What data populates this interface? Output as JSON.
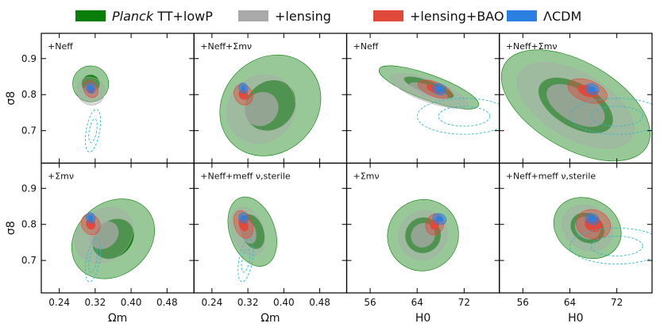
{
  "chart_data": {
    "type": "contour",
    "colors": {
      "planck": "#0a7d0a",
      "lensing": "#a9a9a9",
      "lensing_bao": "#e0483a",
      "lcdm": "#2a7fe0",
      "dashed": "#36b8c8"
    },
    "legend": [
      {
        "key": "planck",
        "label": "Planck TT+lowP",
        "italic": "Planck",
        "rest": " TT+lowP"
      },
      {
        "key": "lensing",
        "label": "+lensing"
      },
      {
        "key": "lensing_bao",
        "label": "+lensing+BAO"
      },
      {
        "key": "lcdm",
        "label": "ΛCDM"
      }
    ],
    "ylabel": "σ8",
    "yticks": [
      "0.9",
      "0.8",
      "0.7"
    ],
    "ylim": [
      0.61,
      0.97
    ],
    "columns": [
      {
        "xlabel": "Ωm",
        "xlim": [
          0.2,
          0.54
        ],
        "xticks": [
          "0.24",
          "0.32",
          "0.40",
          "0.48"
        ]
      },
      {
        "xlabel": "Ωm",
        "xlim": [
          0.2,
          0.54
        ],
        "xticks": [
          "0.24",
          "0.32",
          "0.40",
          "0.48"
        ]
      },
      {
        "xlabel": "H0",
        "xlim": [
          52,
          78
        ],
        "xticks": [
          "56",
          "64",
          "72"
        ]
      },
      {
        "xlabel": "H0",
        "xlim": [
          52,
          78
        ],
        "xticks": [
          "56",
          "64",
          "72"
        ]
      }
    ],
    "panels": [
      {
        "label": "+Neff",
        "x": "Omega_m",
        "y": "sigma_8"
      },
      {
        "label": "+Neff+Σmν",
        "x": "Omega_m",
        "y": "sigma_8"
      },
      {
        "label": "+Neff",
        "x": "H0",
        "y": "sigma_8"
      },
      {
        "label": "+Neff+Σmν",
        "x": "H0",
        "y": "sigma_8"
      },
      {
        "label": "+Σmν",
        "x": "Omega_m",
        "y": "sigma_8"
      },
      {
        "label": "+Neff+meff ν,sterile",
        "x": "Omega_m",
        "y": "sigma_8"
      },
      {
        "label": "+Σmν",
        "x": "H0",
        "y": "sigma_8"
      },
      {
        "label": "+Neff+meff ν,sterile",
        "x": "H0",
        "y": "sigma_8"
      }
    ],
    "contours": [
      [
        {
          "key": "planck",
          "level": 2,
          "cx": 0.31,
          "cy": 0.83,
          "sx": 0.04,
          "sy": 0.05,
          "rot": -40
        },
        {
          "key": "lensing",
          "level": 2,
          "cx": 0.31,
          "cy": 0.81,
          "sx": 0.03,
          "sy": 0.04,
          "rot": -40
        },
        {
          "key": "lensing_bao",
          "level": 2,
          "cx": 0.31,
          "cy": 0.815,
          "sx": 0.015,
          "sy": 0.025,
          "rot": -30
        },
        {
          "key": "lcdm",
          "level": 2,
          "cx": 0.31,
          "cy": 0.818,
          "sx": 0.01,
          "sy": 0.015,
          "rot": -20
        },
        {
          "key": "dashed",
          "level": 2,
          "cx": 0.315,
          "cy": 0.7,
          "sx": 0.015,
          "sy": 0.06,
          "rot": 10
        }
      ],
      [
        {
          "key": "planck",
          "level": 2,
          "cx": 0.37,
          "cy": 0.77,
          "sx": 0.12,
          "sy": 0.13,
          "rot": -45
        },
        {
          "key": "lensing",
          "level": 2,
          "cx": 0.35,
          "cy": 0.76,
          "sx": 0.08,
          "sy": 0.09,
          "rot": -45
        },
        {
          "key": "lensing_bao",
          "level": 2,
          "cx": 0.31,
          "cy": 0.8,
          "sx": 0.02,
          "sy": 0.03,
          "rot": -30
        },
        {
          "key": "lcdm",
          "level": 2,
          "cx": 0.31,
          "cy": 0.818,
          "sx": 0.01,
          "sy": 0.015,
          "rot": -20
        }
      ],
      [
        {
          "key": "planck",
          "level": 2,
          "cx": 66,
          "cy": 0.82,
          "sx": 9,
          "sy": 0.035,
          "rot": 20
        },
        {
          "key": "lensing",
          "level": 2,
          "cx": 66,
          "cy": 0.81,
          "sx": 7,
          "sy": 0.03,
          "rot": 20
        },
        {
          "key": "lensing_bao",
          "level": 2,
          "cx": 67,
          "cy": 0.815,
          "sx": 3,
          "sy": 0.02,
          "rot": 20
        },
        {
          "key": "lcdm",
          "level": 2,
          "cx": 67.8,
          "cy": 0.815,
          "sx": 1.2,
          "sy": 0.015,
          "rot": 20
        },
        {
          "key": "dashed",
          "level": 2,
          "cx": 72,
          "cy": 0.74,
          "sx": 8,
          "sy": 0.05,
          "rot": 0
        }
      ],
      [
        {
          "key": "planck",
          "level": 2,
          "cx": 65,
          "cy": 0.77,
          "sx": 14,
          "sy": 0.12,
          "rot": 30
        },
        {
          "key": "lensing",
          "level": 2,
          "cx": 65,
          "cy": 0.77,
          "sx": 11,
          "sy": 0.09,
          "rot": 30
        },
        {
          "key": "lensing_bao",
          "level": 2,
          "cx": 67,
          "cy": 0.81,
          "sx": 3.5,
          "sy": 0.03,
          "rot": 20
        },
        {
          "key": "lcdm",
          "level": 2,
          "cx": 67.8,
          "cy": 0.815,
          "sx": 1.2,
          "sy": 0.015,
          "rot": 20
        },
        {
          "key": "dashed",
          "level": 2,
          "cx": 72,
          "cy": 0.74,
          "sx": 8,
          "sy": 0.05,
          "rot": 0
        }
      ],
      [
        {
          "key": "planck",
          "level": 2,
          "cx": 0.36,
          "cy": 0.76,
          "sx": 0.1,
          "sy": 0.1,
          "rot": -40
        },
        {
          "key": "lensing",
          "level": 2,
          "cx": 0.34,
          "cy": 0.77,
          "sx": 0.07,
          "sy": 0.07,
          "rot": -40
        },
        {
          "key": "lensing_bao",
          "level": 2,
          "cx": 0.31,
          "cy": 0.8,
          "sx": 0.02,
          "sy": 0.03,
          "rot": -30
        },
        {
          "key": "lcdm",
          "level": 2,
          "cx": 0.31,
          "cy": 0.818,
          "sx": 0.01,
          "sy": 0.015,
          "rot": -20
        },
        {
          "key": "dashed",
          "level": 2,
          "cx": 0.315,
          "cy": 0.7,
          "sx": 0.015,
          "sy": 0.06,
          "rot": 10
        }
      ],
      [
        {
          "key": "planck",
          "level": 2,
          "cx": 0.33,
          "cy": 0.78,
          "sx": 0.05,
          "sy": 0.1,
          "rot": -20
        },
        {
          "key": "lensing",
          "level": 2,
          "cx": 0.32,
          "cy": 0.78,
          "sx": 0.035,
          "sy": 0.07,
          "rot": -20
        },
        {
          "key": "lensing_bao",
          "level": 2,
          "cx": 0.31,
          "cy": 0.8,
          "sx": 0.02,
          "sy": 0.04,
          "rot": -20
        },
        {
          "key": "lcdm",
          "level": 2,
          "cx": 0.31,
          "cy": 0.818,
          "sx": 0.01,
          "sy": 0.015,
          "rot": -20
        },
        {
          "key": "dashed",
          "level": 2,
          "cx": 0.315,
          "cy": 0.7,
          "sx": 0.015,
          "sy": 0.06,
          "rot": 10
        }
      ],
      [
        {
          "key": "planck",
          "level": 2,
          "cx": 65,
          "cy": 0.77,
          "sx": 6,
          "sy": 0.1,
          "rot": 40
        },
        {
          "key": "lensing",
          "level": 2,
          "cx": 65,
          "cy": 0.77,
          "sx": 4,
          "sy": 0.07,
          "rot": 40
        },
        {
          "key": "lensing_bao",
          "level": 2,
          "cx": 67,
          "cy": 0.8,
          "sx": 1.5,
          "sy": 0.03,
          "rot": 20
        },
        {
          "key": "lcdm",
          "level": 2,
          "cx": 67.8,
          "cy": 0.815,
          "sx": 1.2,
          "sy": 0.015,
          "rot": 20
        }
      ],
      [
        {
          "key": "planck",
          "level": 2,
          "cx": 67,
          "cy": 0.79,
          "sx": 6,
          "sy": 0.08,
          "rot": 30
        },
        {
          "key": "lensing",
          "level": 2,
          "cx": 67,
          "cy": 0.79,
          "sx": 4.5,
          "sy": 0.06,
          "rot": 30
        },
        {
          "key": "lensing_bao",
          "level": 2,
          "cx": 68,
          "cy": 0.8,
          "sx": 3,
          "sy": 0.04,
          "rot": 20
        },
        {
          "key": "lcdm",
          "level": 2,
          "cx": 67.8,
          "cy": 0.815,
          "sx": 1.2,
          "sy": 0.015,
          "rot": 20
        },
        {
          "key": "dashed",
          "level": 2,
          "cx": 72,
          "cy": 0.74,
          "sx": 8,
          "sy": 0.05,
          "rot": 0
        }
      ]
    ]
  }
}
